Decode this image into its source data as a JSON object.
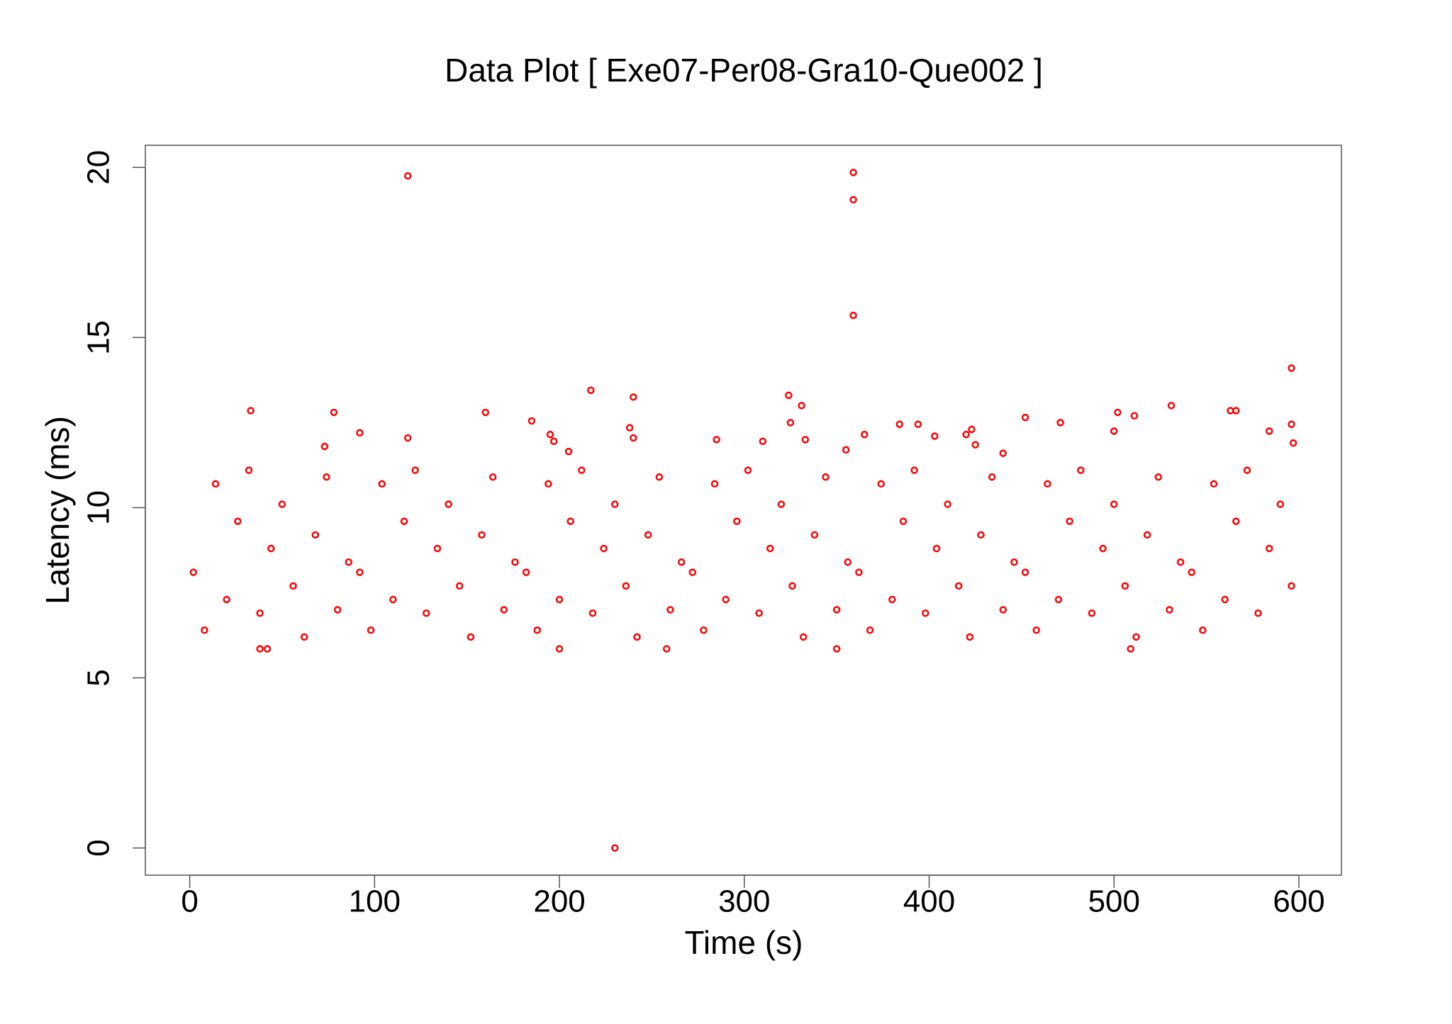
{
  "chart_data": {
    "type": "scatter",
    "title": "Data Plot [ Exe07-Per08-Gra10-Que002 ]",
    "xlabel": "Time (s)",
    "ylabel": "Latency (ms)",
    "color": "#ff0000",
    "xlim": [
      -24,
      623
    ],
    "ylim": [
      -0.8,
      20.65
    ],
    "xticks": [
      0,
      100,
      200,
      300,
      400,
      500,
      600
    ],
    "yticks": [
      0,
      5,
      10,
      15,
      20
    ],
    "grid": false,
    "x": [
      118,
      359,
      359,
      359,
      596,
      217,
      240,
      324,
      331,
      531,
      33,
      78,
      160,
      502,
      563,
      566,
      452,
      511,
      185,
      325,
      471,
      596,
      384,
      394,
      238,
      92,
      500,
      584,
      423,
      195,
      240,
      118,
      333,
      365,
      403,
      420,
      285,
      310,
      197,
      597,
      73,
      425,
      205,
      355,
      440,
      230,
      38,
      42,
      200,
      350,
      509,
      258,
      2,
      8,
      14,
      20,
      26,
      32,
      38,
      44,
      50,
      56,
      62,
      68,
      74,
      80,
      86,
      92,
      98,
      104,
      110,
      116,
      122,
      128,
      134,
      140,
      146,
      152,
      158,
      164,
      170,
      176,
      182,
      188,
      194,
      200,
      206,
      212,
      218,
      224,
      230,
      236,
      242,
      248,
      254,
      260,
      266,
      272,
      278,
      284,
      290,
      296,
      302,
      308,
      314,
      320,
      326,
      332,
      338,
      344,
      350,
      356,
      362,
      368,
      374,
      380,
      386,
      392,
      398,
      404,
      410,
      416,
      422,
      428,
      434,
      440,
      446,
      452,
      458,
      464,
      470,
      476,
      482,
      488,
      494,
      500,
      506,
      512,
      518,
      524,
      530,
      536,
      542,
      548,
      554,
      560,
      566,
      572,
      578,
      584,
      590,
      596
    ],
    "values": [
      19.75,
      19.85,
      19.05,
      15.65,
      14.1,
      13.45,
      13.25,
      13.3,
      13.0,
      13.0,
      12.85,
      12.8,
      12.8,
      12.8,
      12.85,
      12.85,
      12.65,
      12.7,
      12.55,
      12.5,
      12.5,
      12.45,
      12.45,
      12.45,
      12.35,
      12.2,
      12.25,
      12.25,
      12.3,
      12.15,
      12.05,
      12.05,
      12.0,
      12.15,
      12.1,
      12.15,
      12.0,
      11.95,
      11.95,
      11.9,
      11.8,
      11.85,
      11.65,
      11.7,
      11.6,
      0.0,
      5.85,
      5.85,
      5.85,
      5.85,
      5.85,
      5.85,
      8.1,
      6.4,
      10.7,
      7.3,
      9.6,
      11.1,
      6.9,
      8.8,
      10.1,
      7.7,
      6.2,
      9.2,
      10.9,
      7.0,
      8.4,
      8.1,
      6.4,
      10.7,
      7.3,
      9.6,
      11.1,
      6.9,
      8.8,
      10.1,
      7.7,
      6.2,
      9.2,
      10.9,
      7.0,
      8.4,
      8.1,
      6.4,
      10.7,
      7.3,
      9.6,
      11.1,
      6.9,
      8.8,
      10.1,
      7.7,
      6.2,
      9.2,
      10.9,
      7.0,
      8.4,
      8.1,
      6.4,
      10.7,
      7.3,
      9.6,
      11.1,
      6.9,
      8.8,
      10.1,
      7.7,
      6.2,
      9.2,
      10.9,
      7.0,
      8.4,
      8.1,
      6.4,
      10.7,
      7.3,
      9.6,
      11.1,
      6.9,
      8.8,
      10.1,
      7.7,
      6.2,
      9.2,
      10.9,
      7.0,
      8.4,
      8.1,
      6.4,
      10.7,
      7.3,
      9.6,
      11.1,
      6.9,
      8.8,
      10.1,
      7.7,
      6.2,
      9.2,
      10.9,
      7.0,
      8.4,
      8.1,
      6.4,
      10.7,
      7.3,
      9.6,
      11.1,
      6.9,
      8.8,
      10.1,
      7.7
    ]
  }
}
